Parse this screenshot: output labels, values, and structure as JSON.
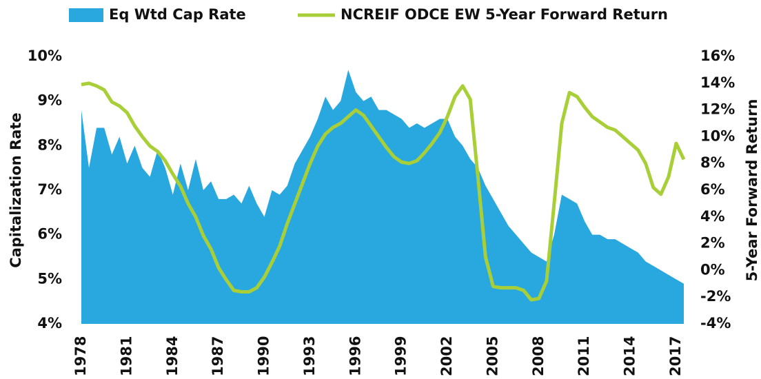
{
  "chart_data": {
    "type": "area_line",
    "x": [
      1978,
      1978.5,
      1979,
      1979.5,
      1980,
      1980.5,
      1981,
      1981.5,
      1982,
      1982.5,
      1983,
      1983.5,
      1984,
      1984.5,
      1985,
      1985.5,
      1986,
      1986.5,
      1987,
      1987.5,
      1988,
      1988.5,
      1989,
      1989.5,
      1990,
      1990.5,
      1991,
      1991.5,
      1992,
      1992.5,
      1993,
      1993.5,
      1994,
      1994.5,
      1995,
      1995.5,
      1996,
      1996.5,
      1997,
      1997.5,
      1998,
      1998.5,
      1999,
      1999.5,
      2000,
      2000.5,
      2001,
      2001.5,
      2002,
      2002.5,
      2003,
      2003.5,
      2004,
      2004.5,
      2005,
      2005.5,
      2006,
      2006.5,
      2007,
      2007.5,
      2008,
      2008.5,
      2009,
      2009.5,
      2010,
      2010.5,
      2011,
      2011.5,
      2012,
      2012.5,
      2013,
      2013.5,
      2014,
      2014.5,
      2015,
      2015.5,
      2016,
      2016.5,
      2017,
      2017.5
    ],
    "series": [
      {
        "name": "Eq Wtd Cap Rate",
        "color": "#29a8e0",
        "kind": "area",
        "axis": "y",
        "values": [
          8.8,
          7.5,
          8.4,
          8.4,
          7.8,
          8.2,
          7.6,
          8.0,
          7.5,
          7.3,
          7.9,
          7.5,
          6.9,
          7.6,
          7.0,
          7.7,
          7.0,
          7.2,
          6.8,
          6.8,
          6.9,
          6.7,
          7.1,
          6.7,
          6.4,
          7.0,
          6.9,
          7.1,
          7.6,
          7.9,
          8.2,
          8.6,
          9.1,
          8.8,
          9.0,
          9.7,
          9.2,
          9.0,
          9.1,
          8.8,
          8.8,
          8.7,
          8.6,
          8.4,
          8.5,
          8.4,
          8.5,
          8.6,
          8.6,
          8.2,
          8.0,
          7.7,
          7.5,
          7.1,
          6.8,
          6.5,
          6.2,
          6.0,
          5.8,
          5.6,
          5.5,
          5.4,
          6.0,
          6.9,
          6.8,
          6.7,
          6.3,
          6.0,
          6.0,
          5.9,
          5.9,
          5.8,
          5.7,
          5.6,
          5.4,
          5.3,
          5.2,
          5.1,
          5.0,
          4.9
        ]
      },
      {
        "name": "NCREIF ODCE EW 5-Year Forward Return",
        "color": "#a8cf38",
        "kind": "line",
        "axis": "y2",
        "values": [
          13.9,
          14.0,
          13.8,
          13.5,
          12.6,
          12.3,
          11.8,
          10.8,
          10.0,
          9.3,
          8.9,
          8.2,
          7.2,
          6.3,
          5.0,
          4.0,
          2.6,
          1.6,
          0.2,
          -0.7,
          -1.5,
          -1.6,
          -1.6,
          -1.3,
          -0.5,
          0.6,
          1.8,
          3.5,
          5.0,
          6.5,
          8.0,
          9.3,
          10.2,
          10.7,
          11.0,
          11.5,
          12.0,
          11.6,
          10.8,
          10.0,
          9.2,
          8.5,
          8.1,
          8.0,
          8.2,
          8.8,
          9.5,
          10.3,
          11.5,
          13.0,
          13.8,
          12.8,
          7.0,
          1.0,
          -1.2,
          -1.3,
          -1.3,
          -1.3,
          -1.5,
          -2.2,
          -2.1,
          -0.8,
          5.0,
          11.0,
          13.3,
          13.0,
          12.2,
          11.5,
          11.1,
          10.7,
          10.5,
          10.0,
          9.5,
          9.0,
          8.0,
          6.2,
          5.7,
          7.0,
          9.5,
          8.3
        ]
      }
    ],
    "ylabel": "Capitalization Rate",
    "y2label": "5-Year Forward Return",
    "xlim": [
      1978,
      2017.5
    ],
    "xticks": [
      1978,
      1981,
      1984,
      1987,
      1990,
      1993,
      1996,
      1999,
      2002,
      2005,
      2008,
      2011,
      2014,
      2017
    ],
    "ylim": [
      4,
      10
    ],
    "yticks": [
      {
        "value": 4,
        "label": "4%"
      },
      {
        "value": 5,
        "label": "5%"
      },
      {
        "value": 6,
        "label": "6%"
      },
      {
        "value": 7,
        "label": "7%"
      },
      {
        "value": 8,
        "label": "8%"
      },
      {
        "value": 9,
        "label": "9%"
      },
      {
        "value": 10,
        "label": "10%"
      }
    ],
    "y2lim": [
      -4,
      16
    ],
    "y2ticks": [
      {
        "value": -4,
        "label": "-4%"
      },
      {
        "value": -2,
        "label": "-2%"
      },
      {
        "value": 0,
        "label": "0%"
      },
      {
        "value": 2,
        "label": "2%"
      },
      {
        "value": 4,
        "label": "4%"
      },
      {
        "value": 6,
        "label": "6%"
      },
      {
        "value": 8,
        "label": "8%"
      },
      {
        "value": 10,
        "label": "10%"
      },
      {
        "value": 12,
        "label": "12%"
      },
      {
        "value": 14,
        "label": "14%"
      },
      {
        "value": 16,
        "label": "16%"
      }
    ],
    "grid": false,
    "legend": "top"
  }
}
